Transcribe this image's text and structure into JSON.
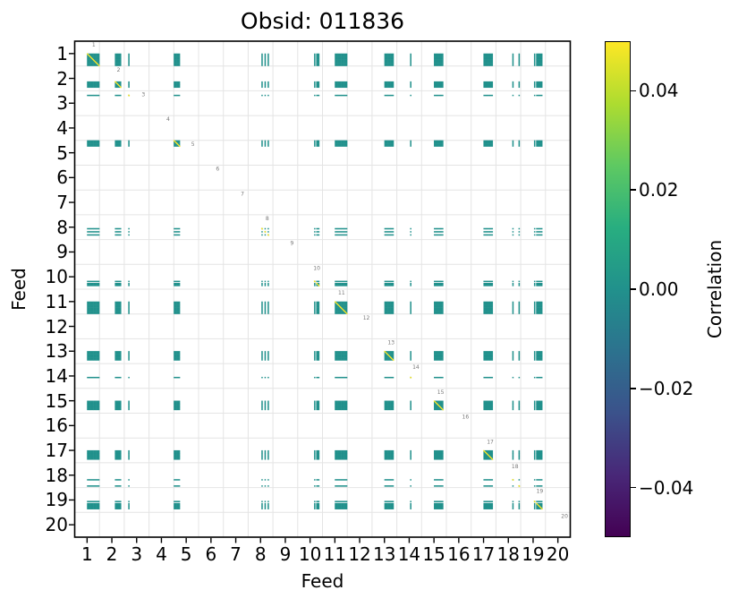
{
  "chart_data": {
    "type": "heatmap",
    "title": "Obsid: 011836",
    "xlabel": "Feed",
    "ylabel": "Feed",
    "x_ticks": [
      "1",
      "2",
      "3",
      "4",
      "5",
      "6",
      "7",
      "8",
      "9",
      "10",
      "11",
      "12",
      "13",
      "14",
      "15",
      "16",
      "17",
      "18",
      "19",
      "20"
    ],
    "y_ticks": [
      "1",
      "2",
      "3",
      "4",
      "5",
      "6",
      "7",
      "8",
      "9",
      "10",
      "11",
      "12",
      "13",
      "14",
      "15",
      "16",
      "17",
      "18",
      "19",
      "20"
    ],
    "axis_range": [
      0.5,
      20.5
    ],
    "grid": true,
    "feeds": 20,
    "bands_per_feed": 8,
    "off_diagonal_correlation": 0.0,
    "diagonal_correlation_clipped_at_vmax": true,
    "empty_feeds": [
      4,
      6,
      7,
      9,
      12,
      16,
      20
    ],
    "active_feed_bands": [
      {
        "feed": 1,
        "bands": [
          {
            "slot": 4,
            "style": "solid"
          },
          {
            "slot": 5,
            "style": "solid"
          },
          {
            "slot": 6,
            "style": "solid"
          },
          {
            "slot": 7,
            "style": "solid"
          }
        ]
      },
      {
        "feed": 2,
        "bands": [
          {
            "slot": 5,
            "style": "solid"
          },
          {
            "slot": 6,
            "style": "solid"
          }
        ]
      },
      {
        "feed": 3,
        "bands": [
          {
            "slot": 1,
            "style": "line"
          }
        ]
      },
      {
        "feed": 5,
        "bands": [
          {
            "slot": 0,
            "style": "solid"
          },
          {
            "slot": 1,
            "style": "solid"
          }
        ]
      },
      {
        "feed": 8,
        "bands": [
          {
            "slot": 4,
            "style": "line"
          },
          {
            "slot": 5,
            "style": "line"
          },
          {
            "slot": 6,
            "style": "line"
          }
        ]
      },
      {
        "feed": 10,
        "bands": [
          {
            "slot": 5,
            "style": "line"
          },
          {
            "slot": 6,
            "style": "solid"
          }
        ]
      },
      {
        "feed": 11,
        "bands": [
          {
            "slot": 4,
            "style": "solid"
          },
          {
            "slot": 5,
            "style": "solid"
          },
          {
            "slot": 6,
            "style": "solid"
          },
          {
            "slot": 7,
            "style": "solid"
          }
        ]
      },
      {
        "feed": 13,
        "bands": [
          {
            "slot": 4,
            "style": "solid"
          },
          {
            "slot": 5,
            "style": "solid"
          },
          {
            "slot": 6,
            "style": "solid"
          }
        ]
      },
      {
        "feed": 14,
        "bands": [
          {
            "slot": 4,
            "style": "line"
          }
        ]
      },
      {
        "feed": 15,
        "bands": [
          {
            "slot": 4,
            "style": "solid"
          },
          {
            "slot": 5,
            "style": "solid"
          },
          {
            "slot": 6,
            "style": "solid"
          }
        ]
      },
      {
        "feed": 17,
        "bands": [
          {
            "slot": 4,
            "style": "solid"
          },
          {
            "slot": 5,
            "style": "solid"
          },
          {
            "slot": 6,
            "style": "solid"
          }
        ]
      },
      {
        "feed": 18,
        "bands": [
          {
            "slot": 5,
            "style": "line"
          },
          {
            "slot": 7,
            "style": "line"
          }
        ]
      },
      {
        "feed": 19,
        "bands": [
          {
            "slot": 4,
            "style": "line"
          },
          {
            "slot": 5,
            "style": "solid"
          },
          {
            "slot": 6,
            "style": "solid"
          }
        ]
      }
    ],
    "diagonal_feed_labels": [
      "1",
      "2",
      "3",
      "4",
      "5",
      "6",
      "7",
      "8",
      "9",
      "10",
      "11",
      "12",
      "13",
      "14",
      "15",
      "16",
      "17",
      "18",
      "19",
      "20"
    ],
    "colorbar": {
      "label": "Correlation",
      "colormap": "viridis",
      "vmin": -0.05,
      "vmax": 0.05,
      "ticks": [
        {
          "label": "0.04",
          "value": 0.04
        },
        {
          "label": "0.02",
          "value": 0.02
        },
        {
          "label": "0.00",
          "value": 0.0
        },
        {
          "label": "−0.02",
          "value": -0.02
        },
        {
          "label": "−0.04",
          "value": -0.04
        }
      ],
      "gradient": [
        "#440154",
        "#482878",
        "#3b528b",
        "#2c728e",
        "#21918c",
        "#28ae80",
        "#5ec962",
        "#addc30",
        "#fde725"
      ]
    },
    "colors": {
      "mark": "#21918c",
      "diagonal": "#fde725",
      "grid": "#e4e4e4",
      "frame": "#000000",
      "annotation": "#777777",
      "background": "#ffffff"
    }
  }
}
